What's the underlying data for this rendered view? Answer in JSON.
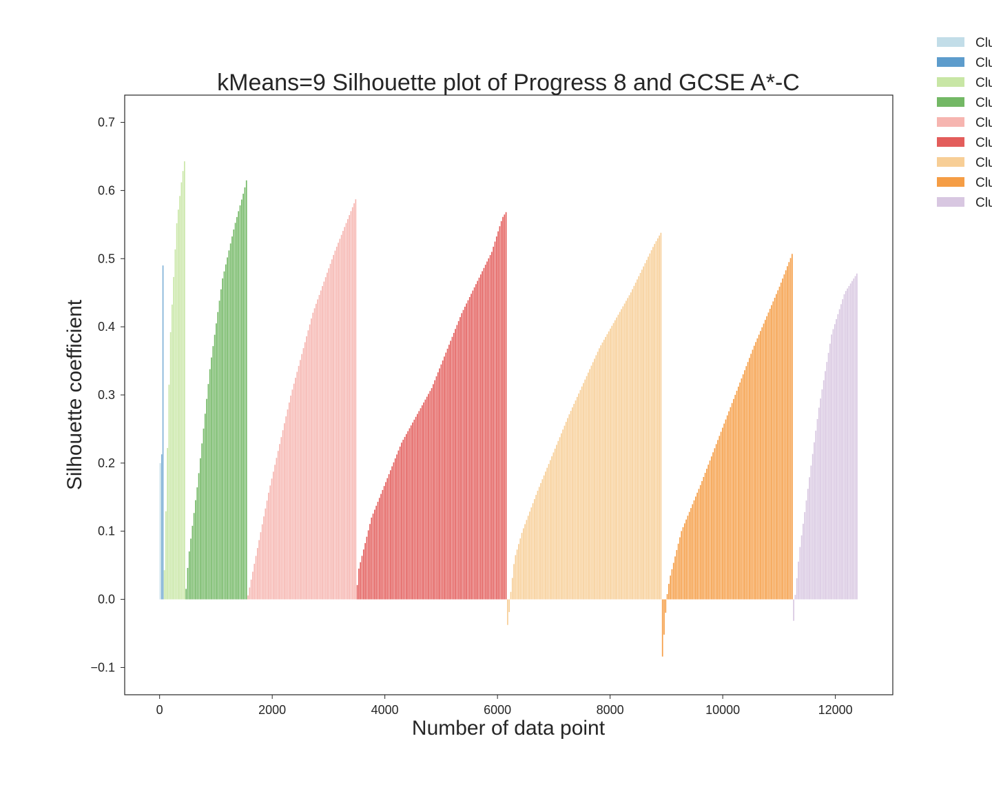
{
  "chart_data": {
    "type": "bar",
    "title": "kMeans=9 Silhouette plot of Progress 8 and GCSE A*-C",
    "xlabel": "Number of data point",
    "ylabel": "Silhouette coefficient",
    "xlim": [
      -620,
      13020
    ],
    "ylim": [
      -0.14,
      0.74
    ],
    "xticks": [
      0,
      2000,
      4000,
      6000,
      8000,
      10000,
      12000
    ],
    "xtick_labels": [
      "0",
      "2000",
      "4000",
      "6000",
      "8000",
      "10000",
      "12000"
    ],
    "yticks": [
      -0.1,
      0.0,
      0.1,
      0.2,
      0.3,
      0.4,
      0.5,
      0.6,
      0.7
    ],
    "ytick_labels": [
      "−0.1",
      "0.0",
      "0.1",
      "0.2",
      "0.3",
      "0.4",
      "0.5",
      "0.6",
      "0.7"
    ],
    "grid": false,
    "legend_position": "outside-top-right",
    "series": [
      {
        "name": "Clu",
        "color": "#c2dde8",
        "start": 0,
        "end": 30,
        "points": [
          [
            0,
            0.0
          ],
          [
            0.5,
            0.2
          ],
          [
            1,
            0.5
          ]
        ]
      },
      {
        "name": "Clu",
        "color": "#5d9ccc",
        "start": 30,
        "end": 75,
        "points": [
          [
            0,
            0.0
          ],
          [
            0.15,
            0.19
          ],
          [
            0.5,
            0.27
          ],
          [
            0.75,
            0.49
          ],
          [
            1,
            0.65
          ]
        ]
      },
      {
        "name": "Clu",
        "color": "#c8e6a5",
        "start": 75,
        "end": 460,
        "points": [
          [
            0,
            0.0
          ],
          [
            0.1,
            0.12
          ],
          [
            0.3,
            0.38
          ],
          [
            0.6,
            0.55
          ],
          [
            0.85,
            0.62
          ],
          [
            1,
            0.65
          ]
        ]
      },
      {
        "name": "Clu",
        "color": "#73b865",
        "start": 460,
        "end": 1560,
        "points": [
          [
            0,
            0.0
          ],
          [
            0.05,
            0.06
          ],
          [
            0.2,
            0.17
          ],
          [
            0.4,
            0.34
          ],
          [
            0.6,
            0.47
          ],
          [
            0.8,
            0.55
          ],
          [
            0.95,
            0.6
          ],
          [
            1,
            0.62
          ]
        ]
      },
      {
        "name": "Clu",
        "color": "#f6b5b0",
        "start": 1560,
        "end": 3500,
        "points": [
          [
            0,
            0.0
          ],
          [
            0.05,
            0.04
          ],
          [
            0.2,
            0.16
          ],
          [
            0.4,
            0.3
          ],
          [
            0.6,
            0.42
          ],
          [
            0.8,
            0.51
          ],
          [
            0.95,
            0.57
          ],
          [
            1,
            0.59
          ]
        ]
      },
      {
        "name": "Clu",
        "color": "#e35d5b",
        "start": 3500,
        "end": 6170,
        "points": [
          [
            0,
            0.0
          ],
          [
            0.01,
            0.04
          ],
          [
            0.1,
            0.12
          ],
          [
            0.3,
            0.23
          ],
          [
            0.5,
            0.31
          ],
          [
            0.7,
            0.42
          ],
          [
            0.9,
            0.51
          ],
          [
            0.97,
            0.56
          ],
          [
            1,
            0.57
          ]
        ]
      },
      {
        "name": "Clu",
        "color": "#f7ce96",
        "start": 6170,
        "end": 8920,
        "points": [
          [
            0,
            -0.047
          ],
          [
            0.02,
            -0.01
          ],
          [
            0.025,
            0.01
          ],
          [
            0.05,
            0.06
          ],
          [
            0.1,
            0.1
          ],
          [
            0.2,
            0.16
          ],
          [
            0.4,
            0.27
          ],
          [
            0.6,
            0.37
          ],
          [
            0.8,
            0.45
          ],
          [
            0.95,
            0.52
          ],
          [
            1,
            0.54
          ]
        ]
      },
      {
        "name": "Clu",
        "color": "#f59d45",
        "start": 8920,
        "end": 11250,
        "points": [
          [
            0,
            -0.1
          ],
          [
            0.03,
            -0.02
          ],
          [
            0.04,
            0.005
          ],
          [
            0.06,
            0.03
          ],
          [
            0.15,
            0.1
          ],
          [
            0.3,
            0.17
          ],
          [
            0.5,
            0.27
          ],
          [
            0.7,
            0.37
          ],
          [
            0.9,
            0.46
          ],
          [
            1,
            0.51
          ]
        ]
      },
      {
        "name": "Clu",
        "color": "#d8c7e1",
        "start": 11250,
        "end": 12400,
        "points": [
          [
            0,
            -0.065
          ],
          [
            0.02,
            -0.01
          ],
          [
            0.04,
            0.01
          ],
          [
            0.1,
            0.07
          ],
          [
            0.2,
            0.14
          ],
          [
            0.4,
            0.28
          ],
          [
            0.6,
            0.39
          ],
          [
            0.8,
            0.45
          ],
          [
            1,
            0.48
          ]
        ]
      }
    ]
  }
}
